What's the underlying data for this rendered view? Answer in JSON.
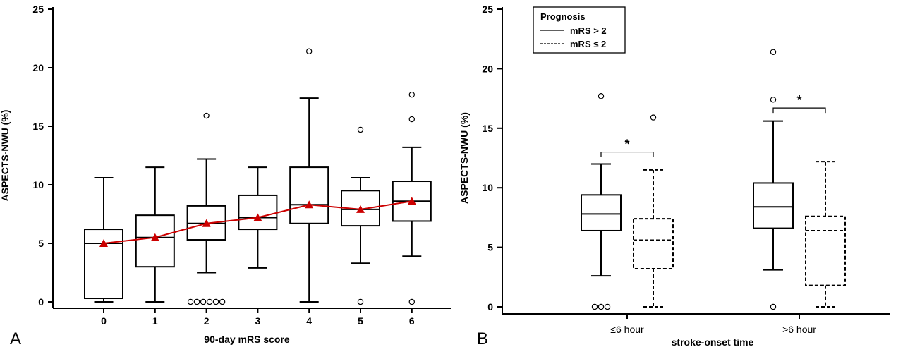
{
  "chart_data": [
    {
      "panel": "A",
      "type": "box",
      "xlabel": "90-day mRS score",
      "ylabel": "ASPECTS-NWU (%)",
      "ylim": [
        0,
        25
      ],
      "yticks": [
        0,
        5,
        10,
        15,
        20,
        25
      ],
      "categories": [
        "0",
        "1",
        "2",
        "3",
        "4",
        "5",
        "6"
      ],
      "boxes": [
        {
          "min": 0,
          "q1": 0.3,
          "median": 5.0,
          "q3": 6.2,
          "max": 10.6,
          "outliers": []
        },
        {
          "min": 0,
          "q1": 3.0,
          "median": 5.5,
          "q3": 7.4,
          "max": 11.5,
          "outliers": []
        },
        {
          "min": 2.5,
          "q1": 5.3,
          "median": 6.7,
          "q3": 8.2,
          "max": 12.2,
          "outliers": [
            15.9,
            0,
            0,
            0,
            0,
            0,
            0
          ]
        },
        {
          "min": 2.9,
          "q1": 6.2,
          "median": 7.2,
          "q3": 9.1,
          "max": 11.5,
          "outliers": []
        },
        {
          "min": 0,
          "q1": 6.7,
          "median": 8.3,
          "q3": 11.5,
          "max": 17.4,
          "outliers": [
            21.4
          ]
        },
        {
          "min": 3.3,
          "q1": 6.5,
          "median": 7.9,
          "q3": 9.5,
          "max": 10.6,
          "outliers": [
            14.7,
            0
          ]
        },
        {
          "min": 3.9,
          "q1": 6.9,
          "median": 8.6,
          "q3": 10.3,
          "max": 13.2,
          "outliers": [
            17.7,
            15.6,
            0
          ]
        }
      ],
      "mean_line": {
        "color": "#cc0000",
        "values": [
          5.0,
          5.5,
          6.7,
          7.2,
          8.3,
          7.9,
          8.6
        ]
      }
    },
    {
      "panel": "B",
      "type": "box",
      "xlabel": "stroke-onset time",
      "ylabel": "ASPECTS-NWU (%)",
      "ylim": [
        0,
        25
      ],
      "yticks": [
        0,
        5,
        10,
        15,
        20,
        25
      ],
      "categories": [
        "≤6 hour",
        ">6 hour"
      ],
      "legend": {
        "title": "Prognosis",
        "position": "top-left",
        "items": [
          {
            "label": "mRS > 2",
            "style": "solid"
          },
          {
            "label": "mRS ≤ 2",
            "style": "dashed"
          }
        ]
      },
      "series": [
        {
          "name": "mRS > 2",
          "style": "solid",
          "boxes": [
            {
              "min": 2.6,
              "q1": 6.4,
              "median": 7.8,
              "q3": 9.4,
              "max": 12.0,
              "outliers": [
                17.7,
                0,
                0,
                0
              ]
            },
            {
              "min": 3.1,
              "q1": 6.6,
              "median": 8.4,
              "q3": 10.4,
              "max": 15.6,
              "outliers": [
                21.4,
                17.4,
                0
              ]
            }
          ]
        },
        {
          "name": "mRS ≤ 2",
          "style": "dashed",
          "boxes": [
            {
              "min": 0,
              "q1": 3.2,
              "median": 5.6,
              "q3": 7.4,
              "max": 11.5,
              "outliers": [
                15.9
              ]
            },
            {
              "min": 0,
              "q1": 1.8,
              "median": 6.4,
              "q3": 7.6,
              "max": 12.2,
              "outliers": []
            }
          ]
        }
      ],
      "significance": [
        {
          "category": "≤6 hour",
          "label": "*",
          "bracket_y": 13.0
        },
        {
          "category": ">6 hour",
          "label": "*",
          "bracket_y": 16.7
        }
      ]
    }
  ]
}
